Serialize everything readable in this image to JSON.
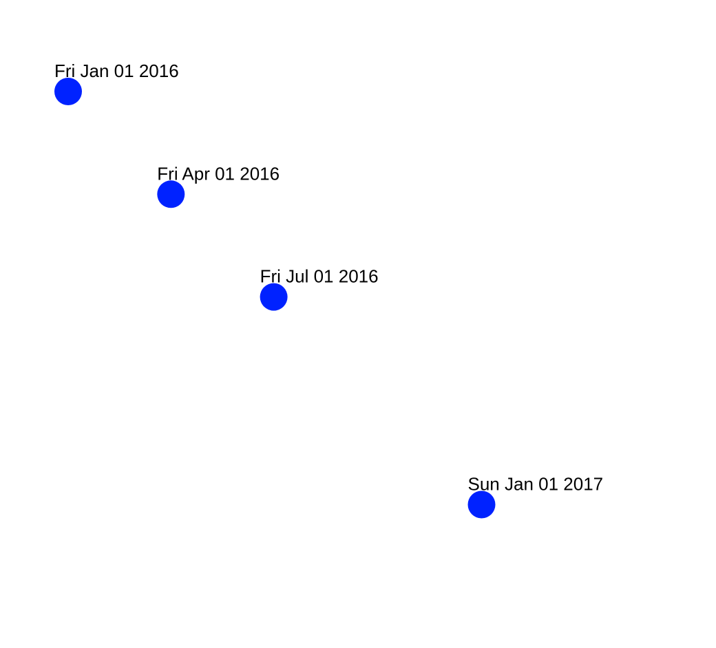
{
  "chart_data": {
    "type": "scatter",
    "points": [
      {
        "date": "2016-01-01",
        "label": "Fri Jan 01 2016"
      },
      {
        "date": "2016-04-01",
        "label": "Fri Apr 01 2016"
      },
      {
        "date": "2016-07-01",
        "label": "Fri Jul 01 2016"
      },
      {
        "date": "2017-01-01",
        "label": "Sun Jan 01 2017"
      }
    ],
    "x_axis": {
      "type": "time",
      "range": [
        "2016-01-01",
        "2017-01-01"
      ],
      "visible": false
    },
    "y_axis": {
      "type": "time",
      "range": [
        "2016-01-01",
        "2017-01-01"
      ],
      "visible": false
    },
    "grid": false,
    "legend": "none",
    "point_color": "#0022ff",
    "label_color": "#000000"
  }
}
